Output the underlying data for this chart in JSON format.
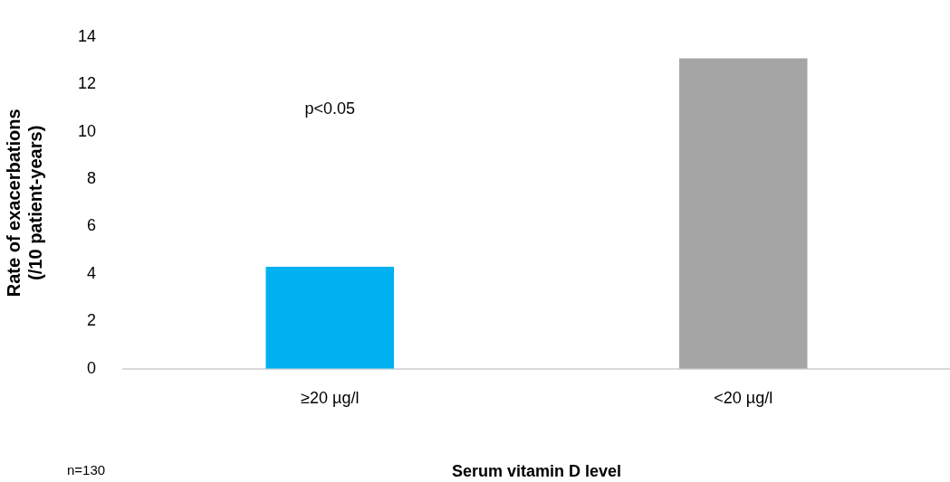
{
  "chart_data": {
    "type": "bar",
    "ylabel": "Rate of exacerbations\n(/10 patient-years)",
    "xlabel": "Serum vitamin D level",
    "categories": [
      "≥20 µg/l",
      "<20 µg/l"
    ],
    "values": [
      4.3,
      13.1
    ],
    "colors": [
      "#00b0f0",
      "#a5a5a5"
    ],
    "ylim": [
      0,
      14
    ],
    "yticks": [
      0,
      2,
      4,
      6,
      8,
      10,
      12,
      14
    ],
    "grid": false,
    "legend": false,
    "annotations": [
      "p<0.05",
      "n=130"
    ]
  }
}
